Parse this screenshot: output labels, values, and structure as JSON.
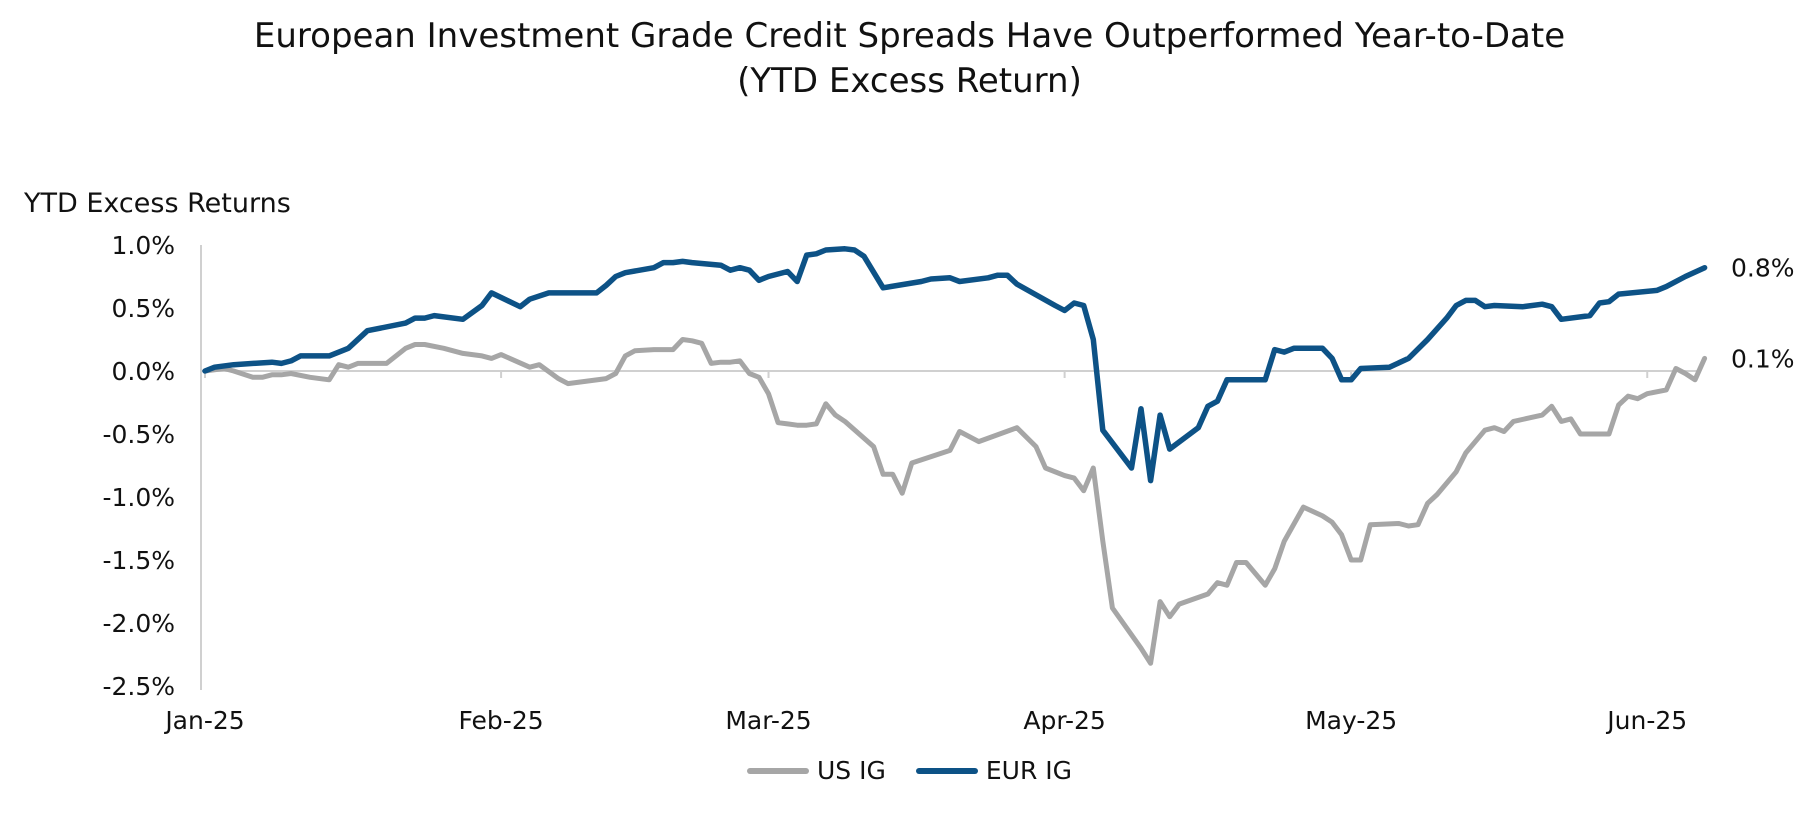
{
  "title_line1": "European Investment Grade Credit Spreads Have Outperformed Year-to-Date",
  "title_line2": "(YTD Excess Return)",
  "chart_data": {
    "type": "line",
    "title": "European Investment Grade Credit Spreads Have Outperformed Year-to-Date (YTD Excess Return)",
    "ylabel": "YTD Excess Returns",
    "xlabel": "",
    "ylim": [
      -2.5,
      1.0
    ],
    "yticks": [
      1.0,
      0.5,
      0.0,
      -0.5,
      -1.0,
      -1.5,
      -2.0,
      -2.5
    ],
    "ytick_labels": [
      "1.0%",
      "0.5%",
      "0.0%",
      "-0.5%",
      "-1.0%",
      "-1.5%",
      "-2.0%",
      "-2.5%"
    ],
    "xlim": [
      0,
      156
    ],
    "xticks": [
      0,
      31,
      59,
      90,
      120,
      151
    ],
    "xtick_labels": [
      "Jan-25",
      "Feb-25",
      "Mar-25",
      "Apr-25",
      "May-25",
      "Jun-25"
    ],
    "grid": false,
    "legend_position": "bottom",
    "series": [
      {
        "name": "US IG",
        "color": "#a6a6a6",
        "end_label": "0.1%",
        "points": [
          [
            0,
            0.0
          ],
          [
            2,
            0.02
          ],
          [
            3,
            0.0
          ],
          [
            5,
            -0.05
          ],
          [
            6,
            -0.05
          ],
          [
            7,
            -0.03
          ],
          [
            8,
            -0.03
          ],
          [
            9,
            -0.02
          ],
          [
            11,
            -0.05
          ],
          [
            13,
            -0.07
          ],
          [
            14,
            0.05
          ],
          [
            15,
            0.03
          ],
          [
            16,
            0.06
          ],
          [
            19,
            0.06
          ],
          [
            21,
            0.18
          ],
          [
            22,
            0.21
          ],
          [
            23,
            0.21
          ],
          [
            25,
            0.18
          ],
          [
            27,
            0.14
          ],
          [
            29,
            0.12
          ],
          [
            30,
            0.1
          ],
          [
            31,
            0.13
          ],
          [
            34,
            0.03
          ],
          [
            35,
            0.05
          ],
          [
            37,
            -0.06
          ],
          [
            38,
            -0.1
          ],
          [
            42,
            -0.06
          ],
          [
            43,
            -0.02
          ],
          [
            44,
            0.12
          ],
          [
            45,
            0.16
          ],
          [
            47,
            0.17
          ],
          [
            48,
            0.17
          ],
          [
            49,
            0.17
          ],
          [
            50,
            0.25
          ],
          [
            51,
            0.24
          ],
          [
            52,
            0.22
          ],
          [
            53,
            0.06
          ],
          [
            54,
            0.07
          ],
          [
            55,
            0.07
          ],
          [
            56,
            0.08
          ],
          [
            57,
            -0.02
          ],
          [
            58,
            -0.05
          ],
          [
            59,
            -0.18
          ],
          [
            60,
            -0.41
          ],
          [
            61,
            -0.42
          ],
          [
            62,
            -0.43
          ],
          [
            63,
            -0.43
          ],
          [
            64,
            -0.42
          ],
          [
            65,
            -0.26
          ],
          [
            66,
            -0.35
          ],
          [
            67,
            -0.4
          ],
          [
            70,
            -0.6
          ],
          [
            71,
            -0.82
          ],
          [
            72,
            -0.82
          ],
          [
            73,
            -0.97
          ],
          [
            74,
            -0.73
          ],
          [
            78,
            -0.63
          ],
          [
            79,
            -0.48
          ],
          [
            81,
            -0.56
          ],
          [
            85,
            -0.45
          ],
          [
            87,
            -0.6
          ],
          [
            88,
            -0.77
          ],
          [
            90,
            -0.83
          ],
          [
            91,
            -0.85
          ],
          [
            92,
            -0.95
          ],
          [
            93,
            -0.77
          ],
          [
            94,
            -1.35
          ],
          [
            95,
            -1.88
          ],
          [
            98,
            -2.2
          ],
          [
            99,
            -2.32
          ],
          [
            100,
            -1.83
          ],
          [
            101,
            -1.95
          ],
          [
            102,
            -1.85
          ],
          [
            105,
            -1.77
          ],
          [
            106,
            -1.68
          ],
          [
            107,
            -1.7
          ],
          [
            108,
            -1.52
          ],
          [
            109,
            -1.52
          ],
          [
            111,
            -1.7
          ],
          [
            112,
            -1.57
          ],
          [
            113,
            -1.35
          ],
          [
            115,
            -1.08
          ],
          [
            117,
            -1.15
          ],
          [
            118,
            -1.2
          ],
          [
            119,
            -1.3
          ],
          [
            120,
            -1.5
          ],
          [
            121,
            -1.5
          ],
          [
            122,
            -1.22
          ],
          [
            125,
            -1.21
          ],
          [
            126,
            -1.23
          ],
          [
            127,
            -1.22
          ],
          [
            128,
            -1.05
          ],
          [
            129,
            -0.98
          ],
          [
            131,
            -0.8
          ],
          [
            132,
            -0.65
          ],
          [
            134,
            -0.47
          ],
          [
            135,
            -0.45
          ],
          [
            136,
            -0.48
          ],
          [
            137,
            -0.4
          ],
          [
            140,
            -0.35
          ],
          [
            141,
            -0.28
          ],
          [
            142,
            -0.4
          ],
          [
            143,
            -0.38
          ],
          [
            144,
            -0.5
          ],
          [
            147,
            -0.5
          ],
          [
            148,
            -0.27
          ],
          [
            149,
            -0.2
          ],
          [
            150,
            -0.22
          ],
          [
            151,
            -0.18
          ],
          [
            153,
            -0.15
          ],
          [
            154,
            0.02
          ],
          [
            155,
            -0.02
          ],
          [
            156,
            -0.07
          ],
          [
            157,
            0.1
          ]
        ]
      },
      {
        "name": "EUR IG",
        "color": "#0d5286",
        "end_label": "0.8%",
        "points": [
          [
            0,
            0.0
          ],
          [
            1,
            0.03
          ],
          [
            3,
            0.05
          ],
          [
            7,
            0.07
          ],
          [
            8,
            0.06
          ],
          [
            9,
            0.08
          ],
          [
            10,
            0.12
          ],
          [
            13,
            0.12
          ],
          [
            15,
            0.18
          ],
          [
            17,
            0.32
          ],
          [
            21,
            0.38
          ],
          [
            22,
            0.42
          ],
          [
            23,
            0.42
          ],
          [
            24,
            0.44
          ],
          [
            27,
            0.41
          ],
          [
            29,
            0.52
          ],
          [
            30,
            0.62
          ],
          [
            33,
            0.51
          ],
          [
            34,
            0.57
          ],
          [
            36,
            0.62
          ],
          [
            41,
            0.62
          ],
          [
            42,
            0.68
          ],
          [
            43,
            0.75
          ],
          [
            44,
            0.78
          ],
          [
            47,
            0.82
          ],
          [
            48,
            0.86
          ],
          [
            49,
            0.86
          ],
          [
            50,
            0.87
          ],
          [
            51,
            0.86
          ],
          [
            54,
            0.84
          ],
          [
            55,
            0.8
          ],
          [
            56,
            0.82
          ],
          [
            57,
            0.8
          ],
          [
            58,
            0.72
          ],
          [
            59,
            0.75
          ],
          [
            61,
            0.79
          ],
          [
            62,
            0.71
          ],
          [
            63,
            0.92
          ],
          [
            64,
            0.93
          ],
          [
            65,
            0.96
          ],
          [
            67,
            0.97
          ],
          [
            68,
            0.96
          ],
          [
            69,
            0.91
          ],
          [
            71,
            0.66
          ],
          [
            75,
            0.71
          ],
          [
            76,
            0.73
          ],
          [
            78,
            0.74
          ],
          [
            79,
            0.71
          ],
          [
            82,
            0.74
          ],
          [
            83,
            0.76
          ],
          [
            84,
            0.76
          ],
          [
            85,
            0.69
          ],
          [
            89,
            0.52
          ],
          [
            90,
            0.48
          ],
          [
            91,
            0.54
          ],
          [
            92,
            0.52
          ],
          [
            93,
            0.25
          ],
          [
            94,
            -0.47
          ],
          [
            97,
            -0.77
          ],
          [
            98,
            -0.3
          ],
          [
            99,
            -0.87
          ],
          [
            100,
            -0.35
          ],
          [
            101,
            -0.62
          ],
          [
            104,
            -0.45
          ],
          [
            105,
            -0.28
          ],
          [
            106,
            -0.24
          ],
          [
            107,
            -0.07
          ],
          [
            111,
            -0.07
          ],
          [
            112,
            0.17
          ],
          [
            113,
            0.15
          ],
          [
            114,
            0.18
          ],
          [
            117,
            0.18
          ],
          [
            118,
            0.1
          ],
          [
            119,
            -0.07
          ],
          [
            120,
            -0.07
          ],
          [
            121,
            0.02
          ],
          [
            124,
            0.03
          ],
          [
            126,
            0.1
          ],
          [
            128,
            0.25
          ],
          [
            130,
            0.42
          ],
          [
            131,
            0.52
          ],
          [
            132,
            0.56
          ],
          [
            133,
            0.56
          ],
          [
            134,
            0.51
          ],
          [
            135,
            0.52
          ],
          [
            138,
            0.51
          ],
          [
            140,
            0.53
          ],
          [
            141,
            0.51
          ],
          [
            142,
            0.41
          ],
          [
            145,
            0.44
          ],
          [
            146,
            0.54
          ],
          [
            147,
            0.55
          ],
          [
            148,
            0.61
          ],
          [
            152,
            0.64
          ],
          [
            153,
            0.67
          ],
          [
            155,
            0.75
          ],
          [
            157,
            0.82
          ]
        ]
      }
    ]
  },
  "legend": {
    "items": [
      {
        "label": "US IG",
        "color": "#a6a6a6"
      },
      {
        "label": "EUR IG",
        "color": "#0d5286"
      }
    ]
  }
}
